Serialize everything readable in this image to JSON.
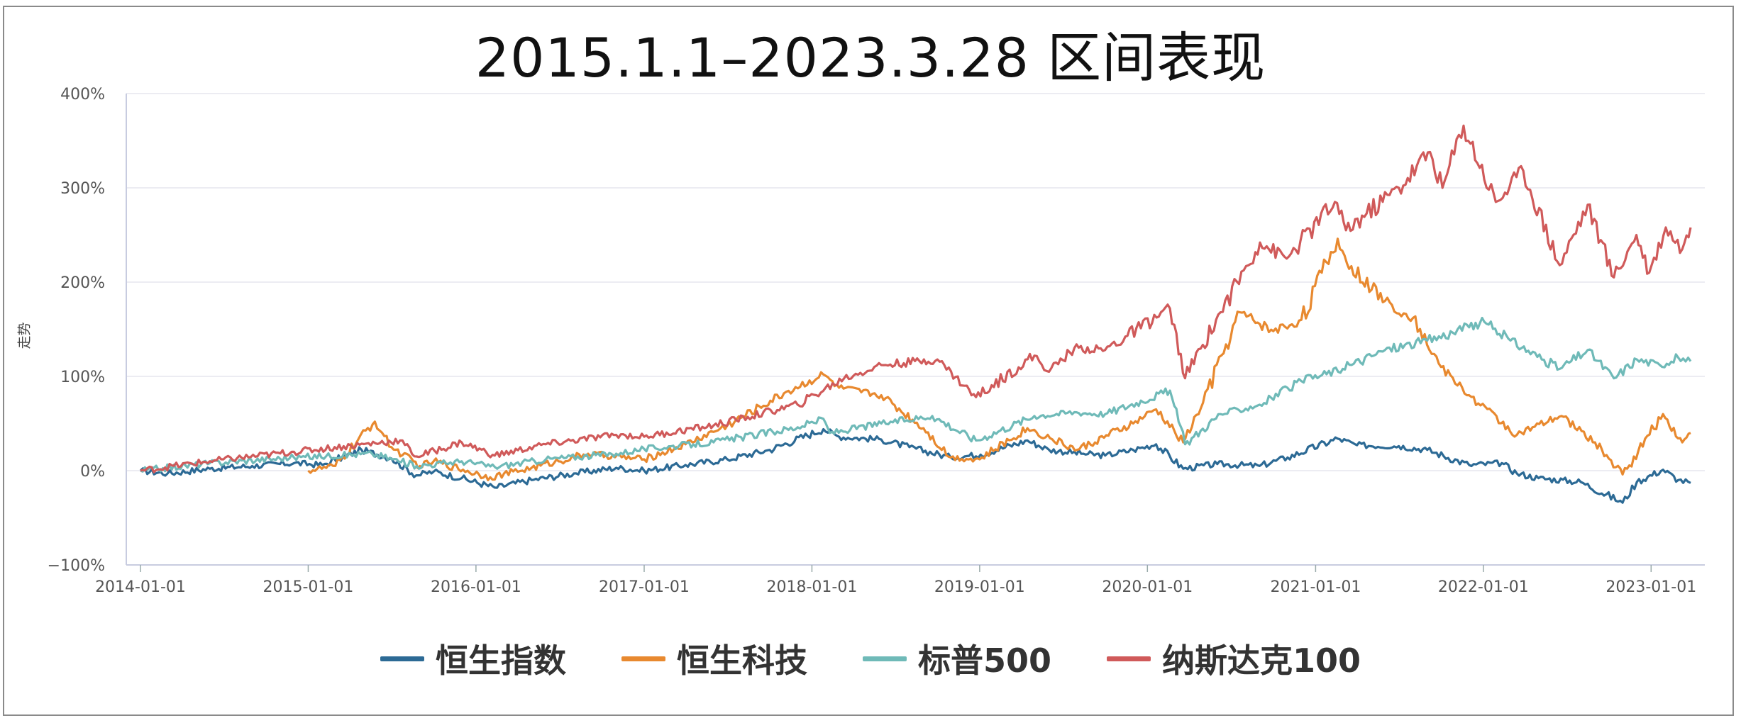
{
  "chart_data": {
    "type": "line",
    "title": "2015.1.1–2023.3.28 区间表现",
    "ylabel": "走势",
    "xlabel": "",
    "ylim": [
      -100,
      400
    ],
    "xlim": [
      "2014-01-01",
      "2023-03-28"
    ],
    "y_ticks": [
      "400%",
      "300%",
      "200%",
      "100%",
      "0%",
      "−100%"
    ],
    "y_tick_values": [
      400,
      300,
      200,
      100,
      0,
      -100
    ],
    "x_ticks": [
      "2014-01-01",
      "2015-01-01",
      "2016-01-01",
      "2017-01-01",
      "2018-01-01",
      "2019-01-01",
      "2020-01-01",
      "2021-01-01",
      "2022-01-01",
      "2023-01-01"
    ],
    "grid": true,
    "legend_position": "bottom",
    "series": [
      {
        "name": "恒生指数",
        "color": "#2c6a95",
        "x": [
          "2014-01-01",
          "2014-03-01",
          "2014-06-01",
          "2014-09-01",
          "2014-12-01",
          "2015-02-01",
          "2015-04-27",
          "2015-07-01",
          "2015-08-24",
          "2015-10-01",
          "2015-12-01",
          "2016-02-11",
          "2016-05-01",
          "2016-08-01",
          "2016-11-01",
          "2017-01-01",
          "2017-04-01",
          "2017-07-01",
          "2017-10-01",
          "2018-01-26",
          "2018-03-01",
          "2018-06-01",
          "2018-08-01",
          "2018-10-30",
          "2019-01-03",
          "2019-04-15",
          "2019-06-01",
          "2019-08-15",
          "2019-10-01",
          "2019-12-01",
          "2020-01-20",
          "2020-03-19",
          "2020-06-01",
          "2020-09-01",
          "2020-11-01",
          "2021-02-18",
          "2021-04-01",
          "2021-07-01",
          "2021-09-01",
          "2021-12-01",
          "2022-02-10",
          "2022-03-15",
          "2022-05-01",
          "2022-08-01",
          "2022-10-31",
          "2022-12-01",
          "2023-01-27",
          "2023-03-01",
          "2023-03-28"
        ],
        "values": [
          0,
          -3,
          2,
          5,
          8,
          6,
          22,
          13,
          -5,
          -1,
          -8,
          -18,
          -10,
          -3,
          3,
          0,
          6,
          12,
          22,
          44,
          36,
          33,
          25,
          14,
          17,
          32,
          22,
          18,
          16,
          22,
          28,
          2,
          7,
          5,
          14,
          34,
          27,
          26,
          22,
          6,
          8,
          -3,
          -8,
          -12,
          -34,
          -12,
          1,
          -10,
          -13
        ]
      },
      {
        "name": "恒生科技",
        "color": "#e8892f",
        "x": [
          "2015-01-01",
          "2015-03-01",
          "2015-05-26",
          "2015-07-01",
          "2015-09-01",
          "2015-10-01",
          "2016-02-01",
          "2016-05-01",
          "2016-09-01",
          "2017-01-01",
          "2017-04-01",
          "2017-07-01",
          "2017-11-01",
          "2018-01-26",
          "2018-03-01",
          "2018-06-01",
          "2018-09-01",
          "2018-10-30",
          "2019-01-01",
          "2019-04-15",
          "2019-08-01",
          "2019-12-01",
          "2020-01-20",
          "2020-03-19",
          "2020-05-01",
          "2020-07-20",
          "2020-10-01",
          "2020-12-01",
          "2021-02-18",
          "2021-03-10",
          "2021-06-01",
          "2021-08-01",
          "2021-10-01",
          "2021-12-01",
          "2022-03-15",
          "2022-06-20",
          "2022-09-01",
          "2022-10-31",
          "2023-01-27",
          "2023-03-10",
          "2023-03-28"
        ],
        "values": [
          0,
          5,
          52,
          25,
          5,
          10,
          -7,
          3,
          18,
          12,
          28,
          48,
          82,
          102,
          88,
          80,
          45,
          14,
          12,
          45,
          22,
          50,
          65,
          30,
          72,
          168,
          148,
          160,
          246,
          220,
          180,
          162,
          110,
          80,
          38,
          58,
          30,
          -4,
          60,
          30,
          40
        ]
      },
      {
        "name": "标普500",
        "color": "#6fbab8",
        "x": [
          "2014-01-01",
          "2014-06-01",
          "2014-12-01",
          "2015-05-20",
          "2015-08-25",
          "2015-12-01",
          "2016-02-11",
          "2016-06-01",
          "2016-11-01",
          "2017-01-01",
          "2017-06-01",
          "2017-12-01",
          "2018-01-26",
          "2018-02-09",
          "2018-06-01",
          "2018-09-20",
          "2018-12-24",
          "2019-04-30",
          "2019-07-26",
          "2019-10-01",
          "2020-02-19",
          "2020-03-23",
          "2020-06-08",
          "2020-09-01",
          "2020-12-01",
          "2021-03-01",
          "2021-06-01",
          "2021-09-01",
          "2021-12-01",
          "2022-01-03",
          "2022-03-01",
          "2022-06-16",
          "2022-08-16",
          "2022-10-12",
          "2022-12-01",
          "2023-01-20",
          "2023-03-01",
          "2023-03-28"
        ],
        "values": [
          0,
          8,
          14,
          18,
          5,
          10,
          4,
          12,
          18,
          23,
          30,
          46,
          55,
          40,
          50,
          58,
          32,
          58,
          62,
          60,
          85,
          28,
          60,
          70,
          95,
          108,
          128,
          138,
          152,
          158,
          138,
          108,
          128,
          98,
          118,
          112,
          120,
          116
        ]
      },
      {
        "name": "纳斯达克100",
        "color": "#d05a5a",
        "x": [
          "2014-01-01",
          "2014-06-01",
          "2014-12-01",
          "2015-07-20",
          "2015-08-25",
          "2015-12-01",
          "2016-02-11",
          "2016-06-01",
          "2016-11-01",
          "2017-01-01",
          "2017-06-01",
          "2017-12-01",
          "2018-03-12",
          "2018-06-01",
          "2018-10-01",
          "2018-12-24",
          "2019-04-30",
          "2019-06-01",
          "2019-07-26",
          "2019-10-01",
          "2020-02-19",
          "2020-03-23",
          "2020-06-08",
          "2020-09-02",
          "2020-10-30",
          "2021-02-12",
          "2021-03-08",
          "2021-07-01",
          "2021-09-07",
          "2021-10-04",
          "2021-11-19",
          "2022-01-28",
          "2022-03-29",
          "2022-06-16",
          "2022-08-16",
          "2022-10-12",
          "2022-11-30",
          "2022-12-28",
          "2023-02-02",
          "2023-03-10",
          "2023-03-28"
        ],
        "values": [
          0,
          10,
          20,
          32,
          15,
          30,
          16,
          28,
          38,
          36,
          48,
          70,
          98,
          112,
          118,
          78,
          122,
          105,
          130,
          128,
          172,
          98,
          168,
          242,
          225,
          285,
          255,
          300,
          338,
          300,
          366,
          285,
          318,
          218,
          282,
          205,
          250,
          210,
          258,
          235,
          258
        ]
      }
    ]
  }
}
